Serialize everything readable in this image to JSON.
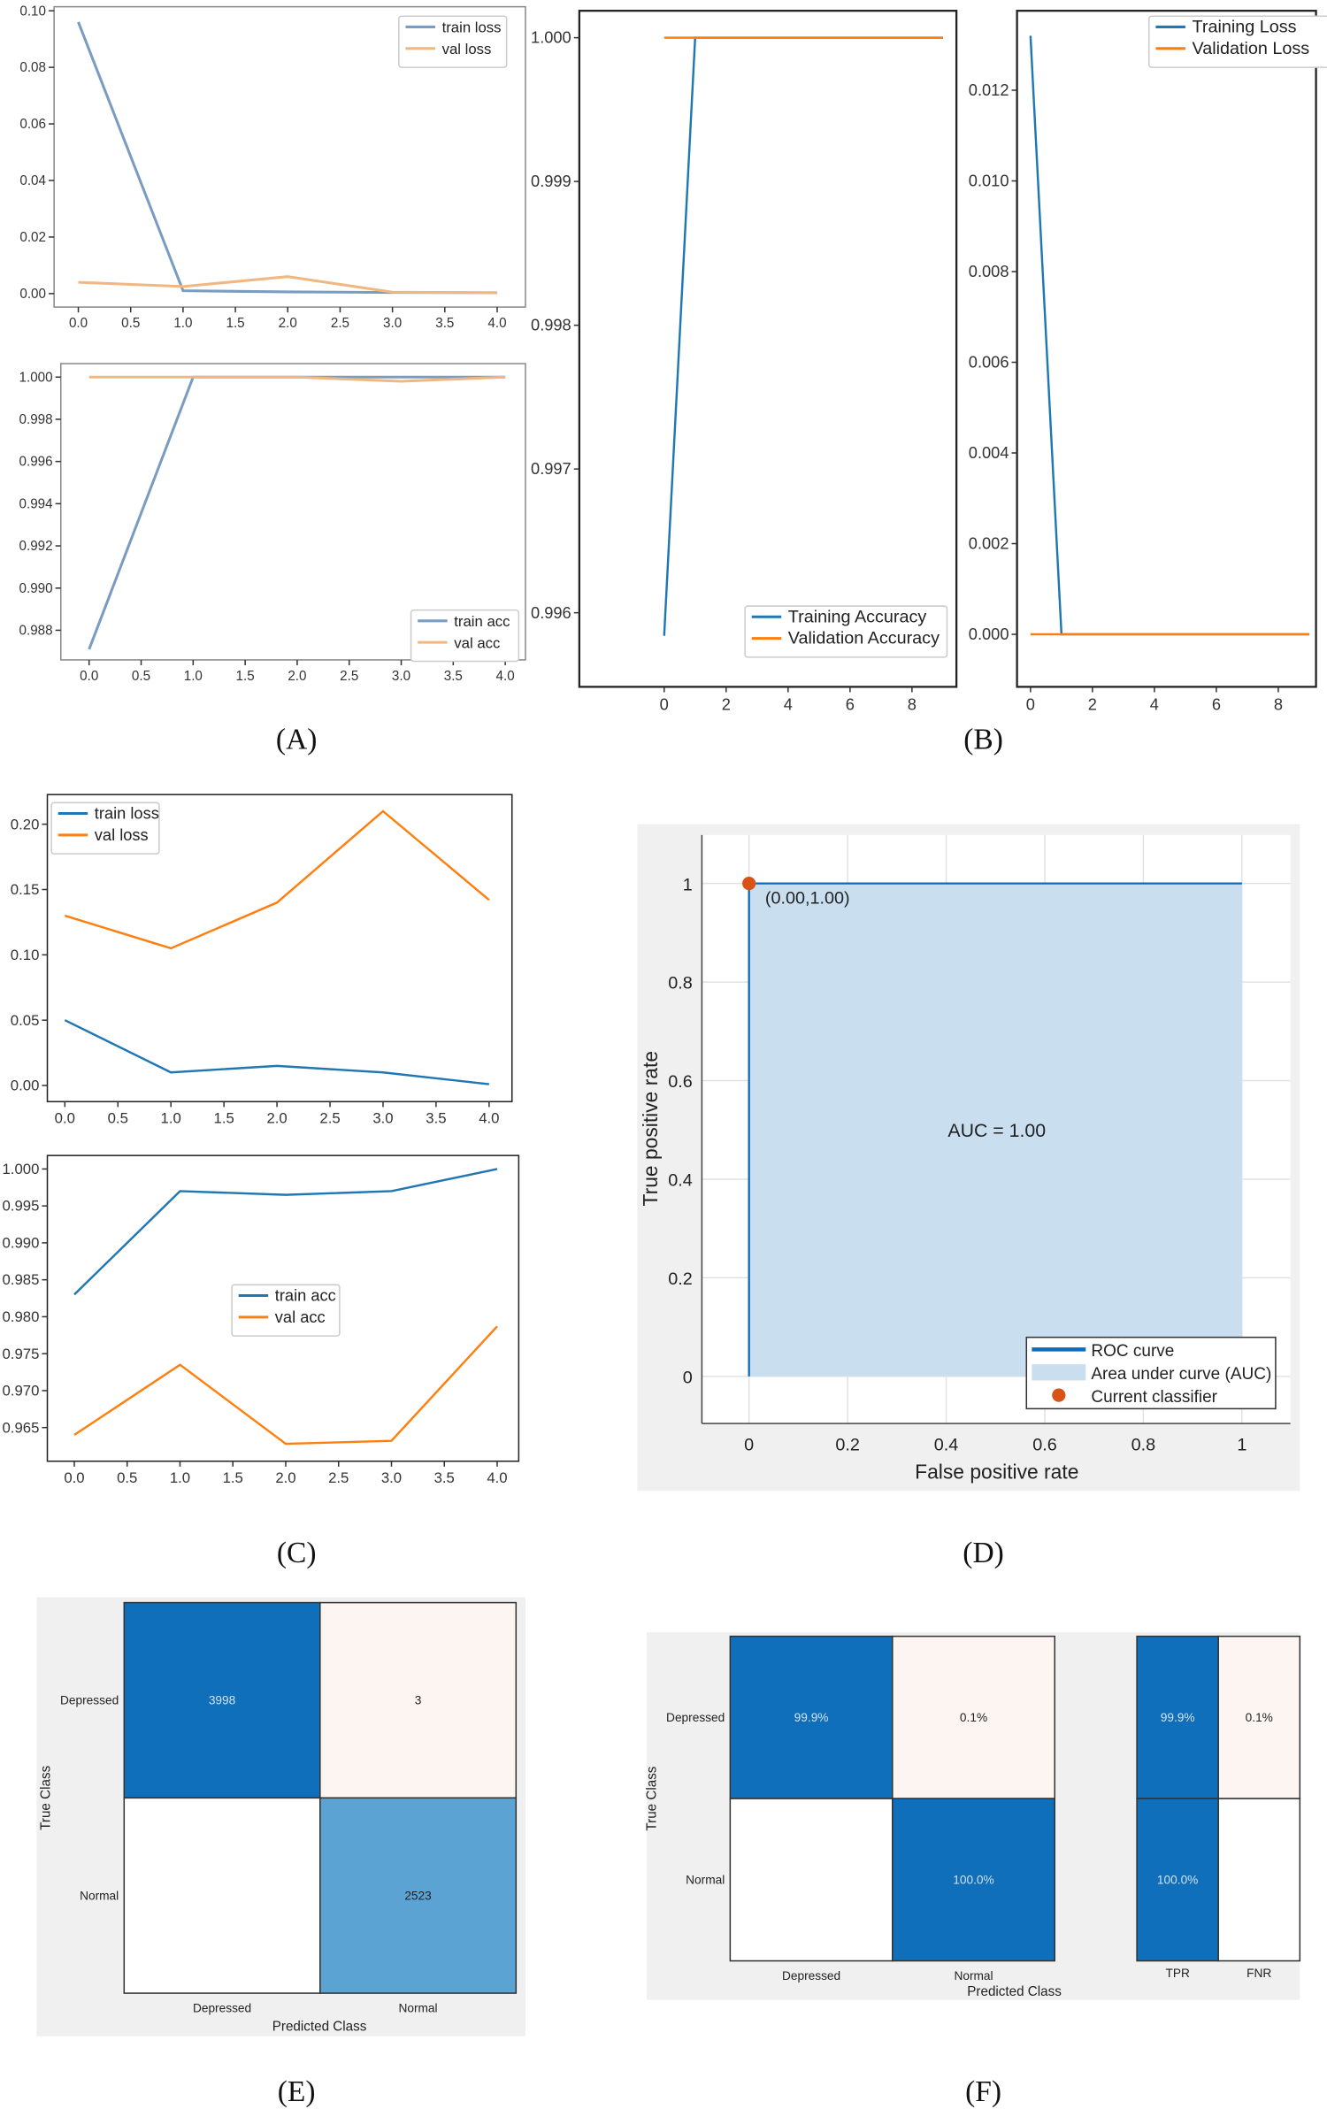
{
  "captions": [
    "(A)",
    "(B)",
    "(C)",
    "(D)",
    "(E)",
    "(F)"
  ],
  "chart_data": [
    {
      "id": "A-loss",
      "type": "line",
      "xticks": [
        "0.0",
        "0.5",
        "1.0",
        "1.5",
        "2.0",
        "2.5",
        "3.0",
        "3.5",
        "4.0"
      ],
      "xlim": [
        0,
        4
      ],
      "ylim": [
        0,
        0.1
      ],
      "yticks": [
        "0.00",
        "0.02",
        "0.04",
        "0.06",
        "0.08",
        "0.10"
      ],
      "legend": "top-right",
      "series": [
        {
          "name": "train loss",
          "color": "#7a9cc0",
          "x": [
            0,
            1,
            2,
            3,
            4
          ],
          "y": [
            0.096,
            0.001,
            0.0006,
            0.0004,
            0.0003
          ]
        },
        {
          "name": "val loss",
          "color": "#f0b880",
          "x": [
            0,
            1,
            2,
            3,
            4
          ],
          "y": [
            0.004,
            0.0025,
            0.006,
            0.0005,
            0.0003
          ]
        }
      ]
    },
    {
      "id": "A-acc",
      "type": "line",
      "xticks": [
        "0.0",
        "0.5",
        "1.0",
        "1.5",
        "2.0",
        "2.5",
        "3.0",
        "3.5",
        "4.0"
      ],
      "xlim": [
        0,
        4
      ],
      "ylim": [
        0.988,
        1.0
      ],
      "yticks": [
        "0.988",
        "0.990",
        "0.992",
        "0.994",
        "0.996",
        "0.998",
        "1.000"
      ],
      "legend": "bottom-right",
      "series": [
        {
          "name": "train acc",
          "color": "#7a9cc0",
          "x": [
            0,
            1,
            2,
            3,
            4
          ],
          "y": [
            0.9871,
            1.0,
            1.0,
            1.0,
            1.0
          ]
        },
        {
          "name": "val acc",
          "color": "#f0b880",
          "x": [
            0,
            1,
            2,
            3,
            4
          ],
          "y": [
            1.0,
            1.0,
            1.0,
            0.9998,
            1.0
          ]
        }
      ]
    },
    {
      "id": "B-acc",
      "type": "line",
      "xticks": [
        "0",
        "2",
        "4",
        "6",
        "8"
      ],
      "xlim": [
        0,
        8
      ],
      "ylim": [
        0.996,
        1.0
      ],
      "yticks": [
        "0.996",
        "0.997",
        "0.998",
        "0.999",
        "1.000"
      ],
      "legend": "bottom-right",
      "series": [
        {
          "name": "Training Accuracy",
          "color": "#1f77b4",
          "x": [
            0,
            1,
            2,
            3,
            4,
            5,
            6,
            7,
            8,
            9
          ],
          "y": [
            0.99584,
            1,
            1,
            1,
            1,
            1,
            1,
            1,
            1,
            1
          ]
        },
        {
          "name": "Validation Accuracy",
          "color": "#ff7f0e",
          "x": [
            0,
            1,
            2,
            3,
            4,
            5,
            6,
            7,
            8,
            9
          ],
          "y": [
            1,
            1,
            1,
            1,
            1,
            1,
            1,
            1,
            1,
            1
          ]
        }
      ]
    },
    {
      "id": "B-loss",
      "type": "line",
      "xticks": [
        "0",
        "2",
        "4",
        "6",
        "8"
      ],
      "xlim": [
        0,
        8
      ],
      "ylim": [
        0,
        0.012
      ],
      "yticks": [
        "0.000",
        "0.002",
        "0.004",
        "0.006",
        "0.008",
        "0.010",
        "0.012"
      ],
      "legend": "top-right",
      "series": [
        {
          "name": "Training Loss",
          "color": "#1f77b4",
          "x": [
            0,
            1,
            2,
            3,
            4,
            5,
            6,
            7,
            8,
            9
          ],
          "y": [
            0.0132,
            0,
            0,
            0,
            0,
            0,
            0,
            0,
            0,
            0
          ]
        },
        {
          "name": "Validation Loss",
          "color": "#ff7f0e",
          "x": [
            0,
            1,
            2,
            3,
            4,
            5,
            6,
            7,
            8,
            9
          ],
          "y": [
            0,
            0,
            0,
            0,
            0,
            0,
            0,
            0,
            0,
            0
          ]
        }
      ]
    },
    {
      "id": "C-loss",
      "type": "line",
      "xticks": [
        "0.0",
        "0.5",
        "1.0",
        "1.5",
        "2.0",
        "2.5",
        "3.0",
        "3.5",
        "4.0"
      ],
      "xlim": [
        0,
        4
      ],
      "ylim": [
        0,
        0.2
      ],
      "yticks": [
        "0.00",
        "0.05",
        "0.10",
        "0.15",
        "0.20"
      ],
      "legend": "top-left",
      "series": [
        {
          "name": "train loss",
          "color": "#1f77b4",
          "x": [
            0,
            1,
            2,
            3,
            4
          ],
          "y": [
            0.05,
            0.01,
            0.015,
            0.01,
            0.001
          ]
        },
        {
          "name": "val loss",
          "color": "#ff7f0e",
          "x": [
            0,
            1,
            2,
            3,
            4
          ],
          "y": [
            0.13,
            0.105,
            0.14,
            0.21,
            0.142
          ]
        }
      ]
    },
    {
      "id": "C-acc",
      "type": "line",
      "xticks": [
        "0.0",
        "0.5",
        "1.0",
        "1.5",
        "2.0",
        "2.5",
        "3.0",
        "3.5",
        "4.0"
      ],
      "xlim": [
        0,
        4
      ],
      "ylim": [
        0.965,
        1.0
      ],
      "yticks": [
        "0.965",
        "0.970",
        "0.975",
        "0.980",
        "0.985",
        "0.990",
        "0.995",
        "1.000"
      ],
      "legend": "center",
      "series": [
        {
          "name": "train acc",
          "color": "#1f77b4",
          "x": [
            0,
            1,
            2,
            3,
            4
          ],
          "y": [
            0.983,
            0.997,
            0.9965,
            0.997,
            1.0
          ]
        },
        {
          "name": "val acc",
          "color": "#ff7f0e",
          "x": [
            0,
            1,
            2,
            3,
            4
          ],
          "y": [
            0.964,
            0.9735,
            0.9628,
            0.9632,
            0.9787
          ]
        }
      ]
    },
    {
      "id": "D-roc",
      "type": "area",
      "xlabel": "False positive rate",
      "ylabel": "True positive rate",
      "xticks": [
        "0",
        "0.2",
        "0.4",
        "0.6",
        "0.8",
        "1"
      ],
      "yticks": [
        "0",
        "0.2",
        "0.4",
        "0.6",
        "0.8",
        "1"
      ],
      "xlim": [
        0,
        1
      ],
      "ylim": [
        0,
        1
      ],
      "curve": {
        "x": [
          0,
          0,
          1
        ],
        "y": [
          0,
          1,
          1
        ]
      },
      "point": {
        "x": 0,
        "y": 1,
        "label": "(0.00,1.00)"
      },
      "annotation": "AUC = 1.00",
      "legend": [
        "ROC curve",
        "Area under curve (AUC)",
        "Current classifier"
      ],
      "legend_position": "bottom-right",
      "colors": {
        "line": "#0b6bbf",
        "fill": "#c9dff0",
        "point": "#d95319"
      }
    },
    {
      "id": "E-confusion",
      "type": "heatmap",
      "ylabel": "True Class",
      "xlabel": "Predicted Class",
      "rows": [
        "Depressed",
        "Normal"
      ],
      "cols": [
        "Depressed",
        "Normal"
      ],
      "values": [
        [
          "3998",
          "3"
        ],
        [
          "",
          "2523"
        ]
      ],
      "colors": [
        [
          "#0f6fba",
          "#fdf5f2"
        ],
        [
          "#ffffff",
          "#5ba3d3"
        ]
      ],
      "text_colors": [
        [
          "#cfe3f5",
          "#222"
        ],
        [
          "#222",
          "#222"
        ]
      ]
    },
    {
      "id": "F-confusion",
      "type": "heatmap",
      "ylabel": "True Class",
      "xlabel": "Predicted Class",
      "rows": [
        "Depressed",
        "Normal"
      ],
      "cols": [
        "Depressed",
        "Normal"
      ],
      "values": [
        [
          "99.9%",
          "0.1%"
        ],
        [
          "",
          "100.0%"
        ]
      ],
      "colors": [
        [
          "#0f6fba",
          "#fdf5f2"
        ],
        [
          "#ffffff",
          "#0f6fba"
        ]
      ],
      "text_colors": [
        [
          "#cfe3f5",
          "#222"
        ],
        [
          "#222",
          "#cfe3f5"
        ]
      ],
      "summary_cols": [
        "TPR",
        "FNR"
      ],
      "summary_values": [
        [
          "99.9%",
          "0.1%"
        ],
        [
          "100.0%",
          ""
        ]
      ],
      "summary_colors": [
        [
          "#0f6fba",
          "#fdf5f2"
        ],
        [
          "#0f6fba",
          "#ffffff"
        ]
      ]
    }
  ]
}
